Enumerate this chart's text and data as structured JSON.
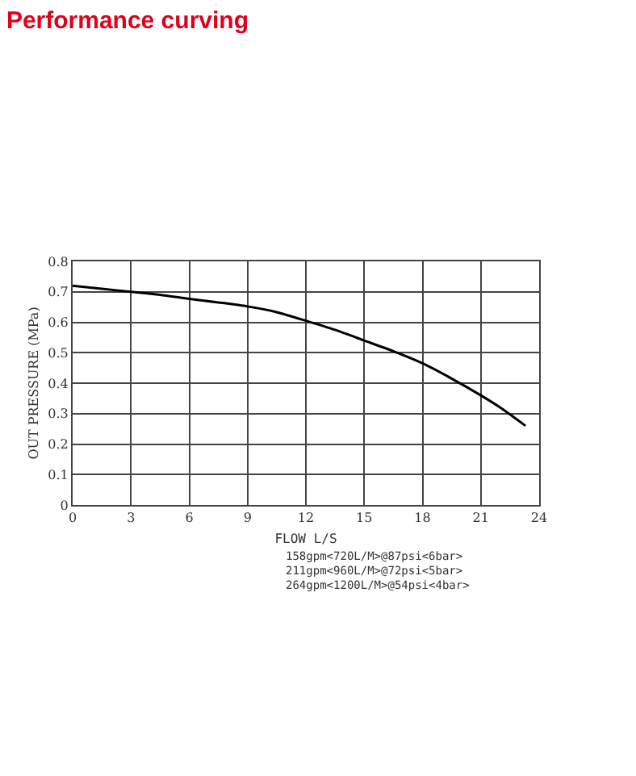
{
  "chart_data": {
    "type": "line",
    "title": "Performance curving",
    "xlabel": "FLOW L/S",
    "ylabel": "OUT PRESSURE (MPa)",
    "x": [
      0,
      1.5,
      3,
      4.5,
      6,
      7.5,
      9,
      10.5,
      12,
      13.5,
      15,
      16.5,
      18,
      19.5,
      21,
      22,
      23.3
    ],
    "series": [
      {
        "color": "#000000",
        "values": [
          0.72,
          0.71,
          0.7,
          0.69,
          0.677,
          0.665,
          0.652,
          0.633,
          0.605,
          0.575,
          0.54,
          0.505,
          0.465,
          0.415,
          0.36,
          0.32,
          0.26
        ]
      }
    ],
    "xlim": [
      0,
      24
    ],
    "xticks": [
      0,
      3,
      6,
      9,
      12,
      15,
      18,
      21,
      24
    ],
    "ylim": [
      0,
      0.8
    ],
    "yticks": [
      {
        "value": 0,
        "label": "0"
      },
      {
        "value": 0.1,
        "label": "0.1"
      },
      {
        "value": 0.2,
        "label": "0.2"
      },
      {
        "value": 0.3,
        "label": "0.3"
      },
      {
        "value": 0.4,
        "label": "0.4"
      },
      {
        "value": 0.5,
        "label": "0.5"
      },
      {
        "value": 0.6,
        "label": "0.6"
      },
      {
        "value": 0.7,
        "label": "0.7"
      },
      {
        "value": 0.8,
        "label": "0.8"
      }
    ],
    "grid": true,
    "marker": "none",
    "line_style": "solid",
    "annotations": [
      "158gpm<720L/M>@87psi<6bar>",
      "211gpm<960L/M>@72psi<5bar>",
      "264gpm<1200L/M>@54psi<4bar>"
    ]
  }
}
